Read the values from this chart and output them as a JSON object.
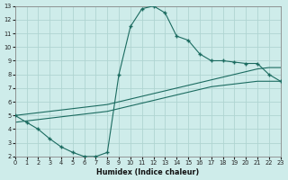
{
  "xlabel": "Humidex (Indice chaleur)",
  "xlim": [
    0,
    23
  ],
  "ylim": [
    2,
    13
  ],
  "xticks": [
    0,
    1,
    2,
    3,
    4,
    5,
    6,
    7,
    8,
    9,
    10,
    11,
    12,
    13,
    14,
    15,
    16,
    17,
    18,
    19,
    20,
    21,
    22,
    23
  ],
  "yticks": [
    2,
    3,
    4,
    5,
    6,
    7,
    8,
    9,
    10,
    11,
    12,
    13
  ],
  "bg_color": "#ceecea",
  "line_color": "#1b6b60",
  "grid_color": "#afd5d1",
  "curve1_x": [
    0,
    1,
    2,
    3,
    4,
    5,
    6,
    7,
    8,
    9,
    10,
    11,
    12,
    13,
    14,
    15,
    16,
    17,
    18,
    19,
    20,
    21,
    22,
    23
  ],
  "curve1_y": [
    5.0,
    4.5,
    4.0,
    3.3,
    2.7,
    2.3,
    2.0,
    2.0,
    2.3,
    8.0,
    11.5,
    12.8,
    13.0,
    12.5,
    10.8,
    10.5,
    9.5,
    9.0,
    9.0,
    8.9,
    8.8,
    8.8,
    8.0,
    7.5
  ],
  "curve2_x": [
    0,
    1,
    2,
    3,
    4,
    5,
    6,
    7,
    8,
    9,
    10,
    11,
    12,
    13,
    14,
    15,
    16,
    17,
    18,
    19,
    20,
    21,
    22,
    23
  ],
  "curve2_y": [
    5.0,
    5.1,
    5.2,
    5.3,
    5.4,
    5.5,
    5.6,
    5.7,
    5.8,
    6.0,
    6.2,
    6.4,
    6.6,
    6.8,
    7.0,
    7.2,
    7.4,
    7.6,
    7.8,
    8.0,
    8.2,
    8.4,
    8.5,
    8.5
  ],
  "curve3_x": [
    0,
    1,
    2,
    3,
    4,
    5,
    6,
    7,
    8,
    9,
    10,
    11,
    12,
    13,
    14,
    15,
    16,
    17,
    18,
    19,
    20,
    21,
    22,
    23
  ],
  "curve3_y": [
    4.5,
    4.6,
    4.7,
    4.8,
    4.9,
    5.0,
    5.1,
    5.2,
    5.3,
    5.5,
    5.7,
    5.9,
    6.1,
    6.3,
    6.5,
    6.7,
    6.9,
    7.1,
    7.2,
    7.3,
    7.4,
    7.5,
    7.5,
    7.5
  ]
}
